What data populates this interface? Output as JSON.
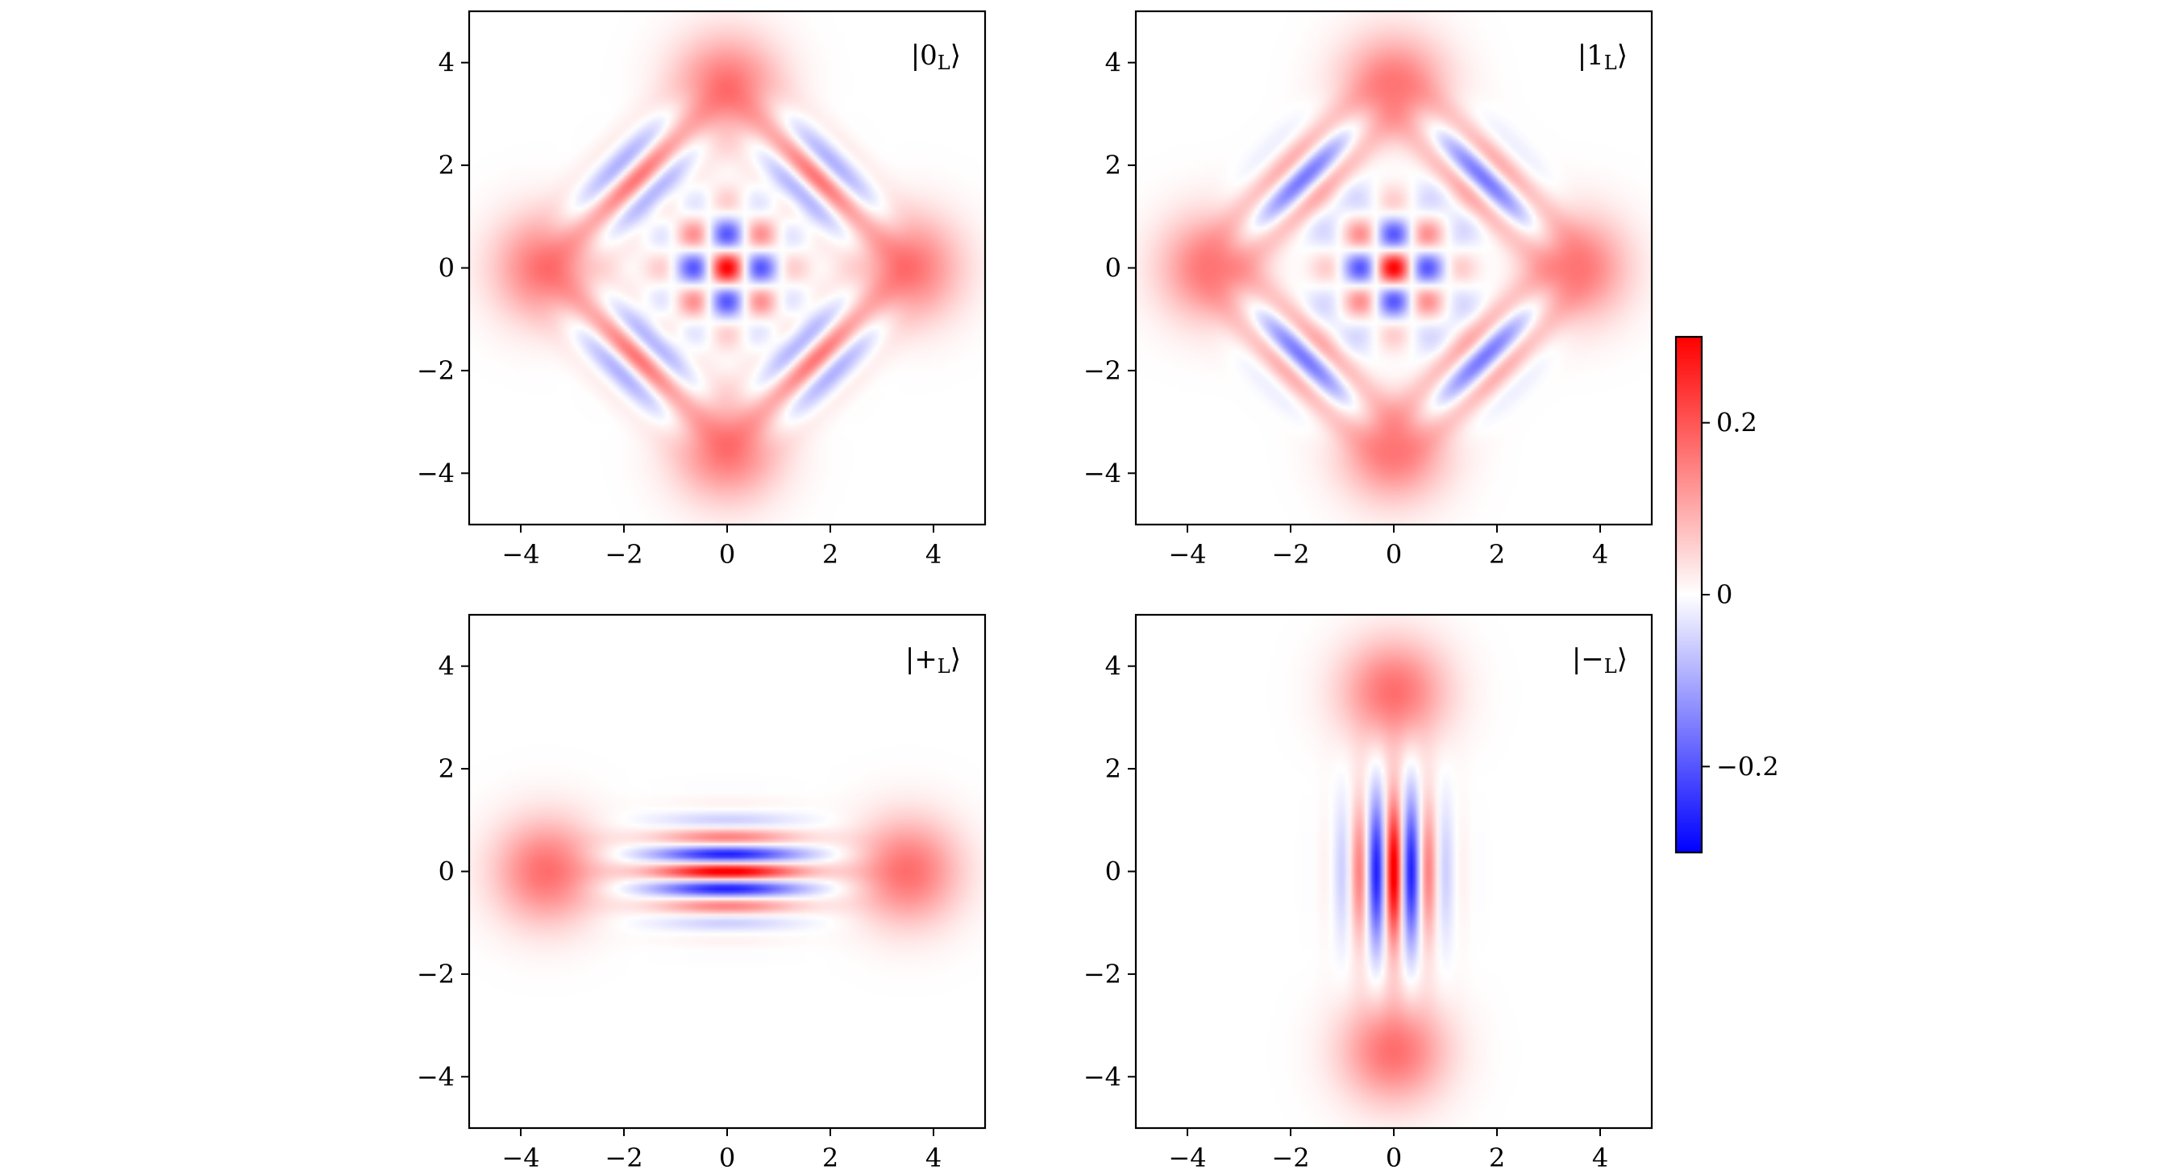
{
  "chart_data": [
    {
      "type": "heatmap",
      "title": "",
      "label": "|0ₗ⟩",
      "label_text": "|0",
      "label_sub": "L",
      "xlabel": "",
      "ylabel": "",
      "xlim": [
        -5,
        5
      ],
      "ylim": [
        -5,
        5
      ],
      "xticks": [
        -4,
        -2,
        0,
        2,
        4
      ],
      "yticks": [
        -4,
        -2,
        0,
        2,
        4
      ],
      "xtick_labels": [
        "−4",
        "−2",
        "0",
        "2",
        "4"
      ],
      "ytick_labels": [
        "−4",
        "−2",
        "0",
        "2",
        "4"
      ],
      "state": "zero",
      "blob_centers": [
        [
          0,
          3.5
        ],
        [
          0,
          -3.5
        ],
        [
          3.5,
          0
        ],
        [
          -3.5,
          0
        ]
      ],
      "grid": false
    },
    {
      "type": "heatmap",
      "title": "",
      "label_text": "|1",
      "label_sub": "L",
      "xlabel": "",
      "ylabel": "",
      "xlim": [
        -5,
        5
      ],
      "ylim": [
        -5,
        5
      ],
      "xticks": [
        -4,
        -2,
        0,
        2,
        4
      ],
      "yticks": [
        -4,
        -2,
        0,
        2,
        4
      ],
      "xtick_labels": [
        "−4",
        "−2",
        "0",
        "2",
        "4"
      ],
      "ytick_labels": [
        "−4",
        "−2",
        "0",
        "2",
        "4"
      ],
      "state": "one",
      "blob_centers": [
        [
          0,
          3.5
        ],
        [
          0,
          -3.5
        ],
        [
          3.5,
          0
        ],
        [
          -3.5,
          0
        ]
      ],
      "grid": false
    },
    {
      "type": "heatmap",
      "title": "",
      "label_text": "|+",
      "label_sub": "L",
      "xlabel": "",
      "ylabel": "",
      "xlim": [
        -5,
        5
      ],
      "ylim": [
        -5,
        5
      ],
      "xticks": [
        -4,
        -2,
        0,
        2,
        4
      ],
      "yticks": [
        -4,
        -2,
        0,
        2,
        4
      ],
      "xtick_labels": [
        "−4",
        "−2",
        "0",
        "2",
        "4"
      ],
      "ytick_labels": [
        "−4",
        "−2",
        "0",
        "2",
        "4"
      ],
      "state": "plus",
      "blob_centers": [
        [
          3.5,
          0
        ],
        [
          -3.5,
          0
        ]
      ],
      "grid": false
    },
    {
      "type": "heatmap",
      "title": "",
      "label_text": "|−",
      "label_sub": "L",
      "xlabel": "",
      "ylabel": "",
      "xlim": [
        -5,
        5
      ],
      "ylim": [
        -5,
        5
      ],
      "xticks": [
        -4,
        -2,
        0,
        2,
        4
      ],
      "yticks": [
        -4,
        -2,
        0,
        2,
        4
      ],
      "xtick_labels": [
        "−4",
        "−2",
        "0",
        "2",
        "4"
      ],
      "ytick_labels": [
        "−4",
        "−2",
        "0",
        "2",
        "4"
      ],
      "state": "minus",
      "blob_centers": [
        [
          0,
          3.5
        ],
        [
          0,
          -3.5
        ]
      ],
      "grid": false
    }
  ],
  "colorbar": {
    "colormap": "bwr",
    "vmin": -0.3,
    "vmax": 0.3,
    "ticks": [
      -0.2,
      0,
      0.2
    ],
    "tick_labels": [
      "−0.2",
      "0",
      "0.2"
    ],
    "low_color": "#0000ff",
    "mid_color": "#ffffff",
    "high_color": "#ff0000"
  },
  "colors": {
    "positive": "#ff0000",
    "negative": "#0000ff",
    "background": "#ffffff",
    "axes": "#000000"
  }
}
